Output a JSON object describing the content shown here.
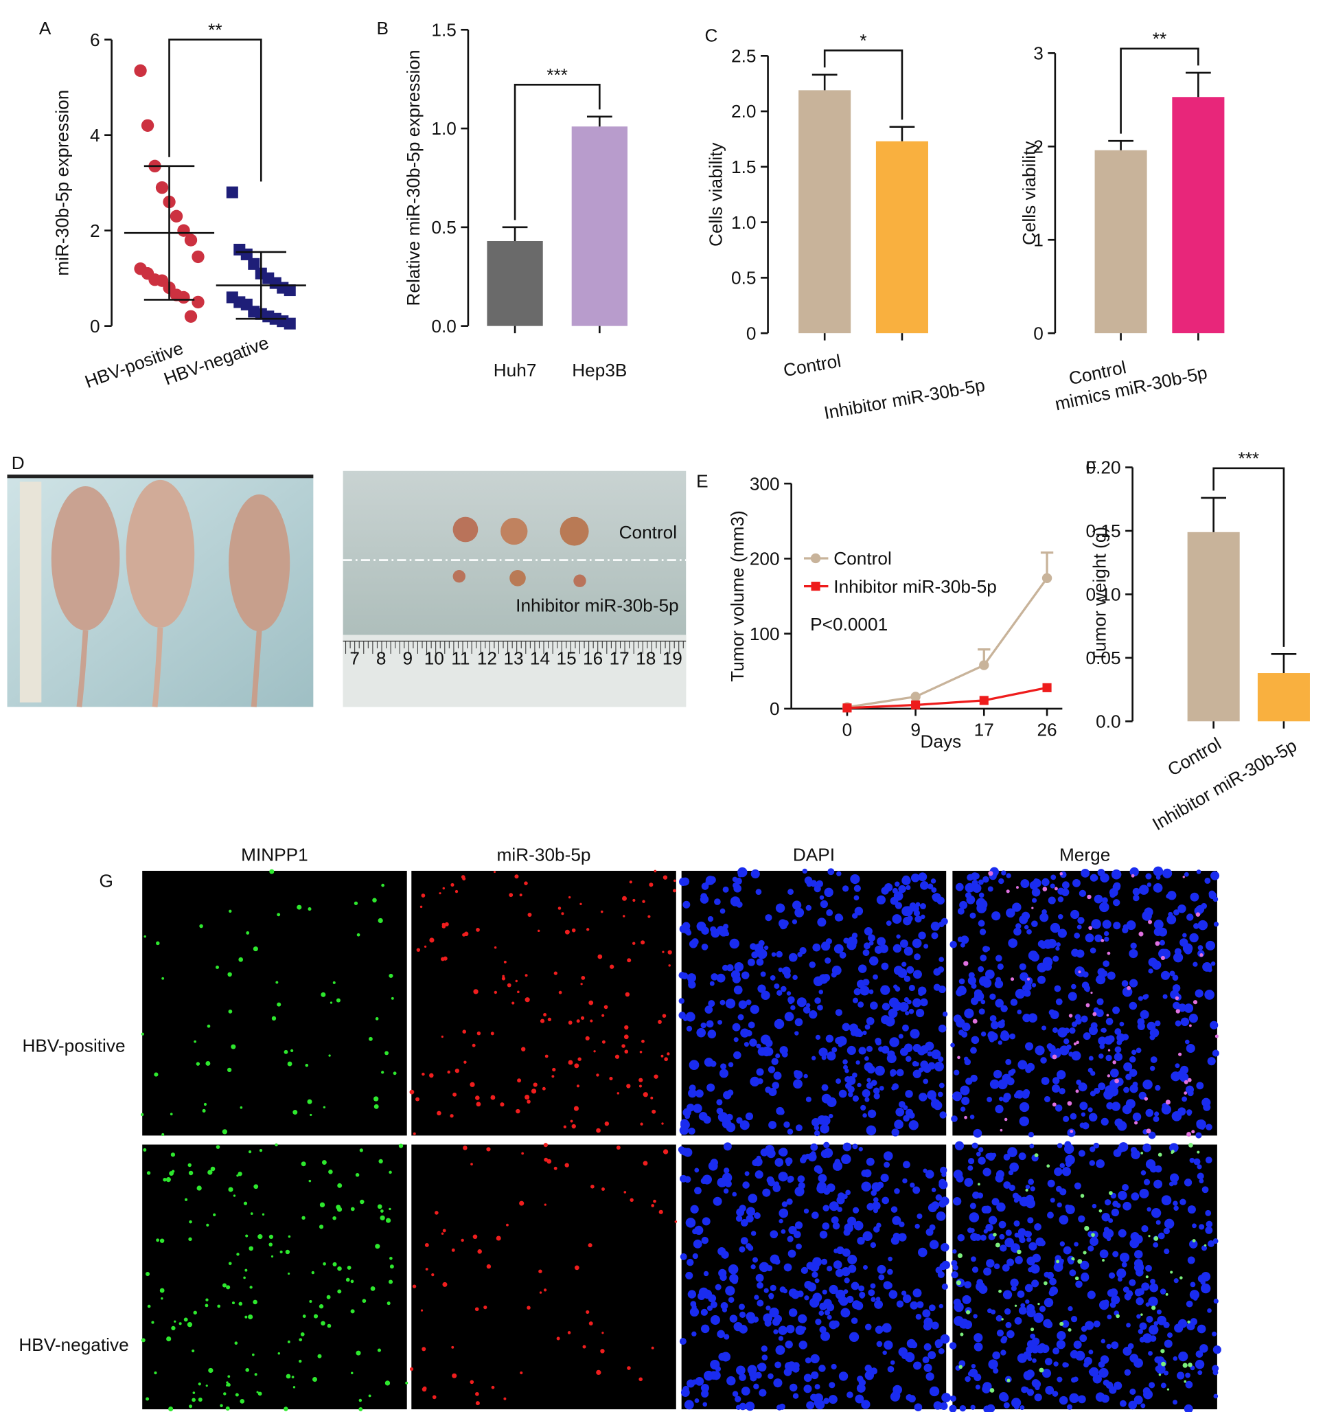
{
  "chart_data": [
    {
      "type": "dot",
      "panel": "A",
      "ylabel": "miR-30b-5p expression",
      "categories": [
        "HBV-positive",
        "HBV-negative"
      ],
      "groups": [
        {
          "values": [
            5.35,
            4.2,
            3.35,
            2.9,
            2.6,
            2.3,
            2.0,
            1.8,
            1.45,
            1.2,
            1.1,
            0.97,
            0.95,
            0.8,
            0.65,
            0.6,
            0.2,
            0.5
          ],
          "mean": 1.95,
          "sd": 1.4,
          "color": "#cc3140",
          "marker": "circle"
        },
        {
          "values": [
            2.8,
            1.6,
            1.5,
            1.3,
            1.1,
            1.0,
            0.9,
            0.8,
            0.75,
            0.6,
            0.5,
            0.45,
            0.3,
            0.25,
            0.2,
            0.15,
            0.1,
            0.05
          ],
          "mean": 0.85,
          "sd": 0.7,
          "color": "#1e1e78",
          "marker": "square"
        }
      ],
      "ylim": [
        0,
        6
      ],
      "yticks": [
        0,
        2,
        4,
        6
      ],
      "significance": "**"
    },
    {
      "type": "bar",
      "panel": "B",
      "ylabel": "Relative miR-30b-5p expression",
      "categories": [
        "Huh7",
        "Hep3B"
      ],
      "values": [
        0.43,
        1.01
      ],
      "errors": [
        0.07,
        0.05
      ],
      "colors": [
        "#6a6a6a",
        "#b89ccc"
      ],
      "ylim": [
        0,
        1.5
      ],
      "yticks": [
        {
          "value": 0,
          "label": "0.0"
        },
        0.5,
        {
          "value": 1,
          "label": "1.0"
        },
        1.5
      ],
      "significance": "***"
    },
    {
      "type": "bar",
      "panel": "C",
      "ylabel": "Cells viability",
      "categories": [
        "Control",
        "Inhibitor miR-30b-5p"
      ],
      "values": [
        2.19,
        1.73
      ],
      "errors": [
        0.14,
        0.13
      ],
      "colors": [
        "#c8b39a",
        "#f9b03f"
      ],
      "ylim": [
        0,
        2.5
      ],
      "yticks": [
        0,
        0.5,
        {
          "value": 1,
          "label": "1.0"
        },
        1.5,
        {
          "value": 2,
          "label": "2.0"
        },
        2.5
      ],
      "significance": "*"
    },
    {
      "type": "bar",
      "ylabel": "Cells viability",
      "categories": [
        "Control",
        "mimics miR-30b-5p"
      ],
      "values": [
        1.96,
        2.53
      ],
      "errors": [
        0.1,
        0.26
      ],
      "colors": [
        "#c8b39a",
        "#e8267a"
      ],
      "ylim": [
        0,
        3
      ],
      "yticks": [
        0,
        1,
        2,
        3
      ],
      "significance": "**"
    },
    {
      "type": "line",
      "panel": "E",
      "ylabel": "Tumor volume (mm3)",
      "xlabel": "Days",
      "categories": [
        "0",
        "9",
        "17",
        "26"
      ],
      "series": [
        {
          "name": "Control",
          "color": "#c8b39a",
          "marker": "circle",
          "values": [
            2,
            16,
            58,
            174
          ],
          "errors": [
            null,
            null,
            21,
            34
          ]
        },
        {
          "name": "Inhibitor miR-30b-5p",
          "color": "#ee1c1c",
          "marker": "square",
          "values": [
            1,
            5,
            11,
            28
          ]
        }
      ],
      "ylim": [
        0,
        300
      ],
      "yticks": [
        0,
        100,
        200,
        300
      ],
      "annotation": "P<0.0001"
    },
    {
      "type": "bar",
      "panel": "F",
      "ylabel": "Tumor weight (g)",
      "categories": [
        "Control",
        "Inhibitor miR-30b-5p"
      ],
      "values": [
        0.149,
        0.038
      ],
      "errors": [
        0.027,
        0.015
      ],
      "colors": [
        "#c8b39a",
        "#f9b03f"
      ],
      "ylim": [
        0,
        0.2
      ],
      "yticks": [
        {
          "value": 0,
          "label": "0.0"
        },
        0.05,
        {
          "value": 0.1,
          "label": "0.10"
        },
        0.15,
        {
          "value": 0.2,
          "label": "0.20"
        }
      ],
      "significance": "***"
    }
  ],
  "photos": {
    "panel": "D",
    "labels": [
      "Control",
      "Inhibitor miR-30b-5p"
    ],
    "ruler": [
      "7",
      "8",
      "9",
      "10",
      "11",
      "12",
      "13",
      "14",
      "15",
      "16",
      "17",
      "18",
      "19"
    ]
  },
  "microscopy": {
    "panel": "G",
    "columns": [
      "MINPP1",
      "miR-30b-5p",
      "DAPI",
      "Merge"
    ],
    "rows": [
      "HBV-positive",
      "HBV-negative"
    ]
  }
}
